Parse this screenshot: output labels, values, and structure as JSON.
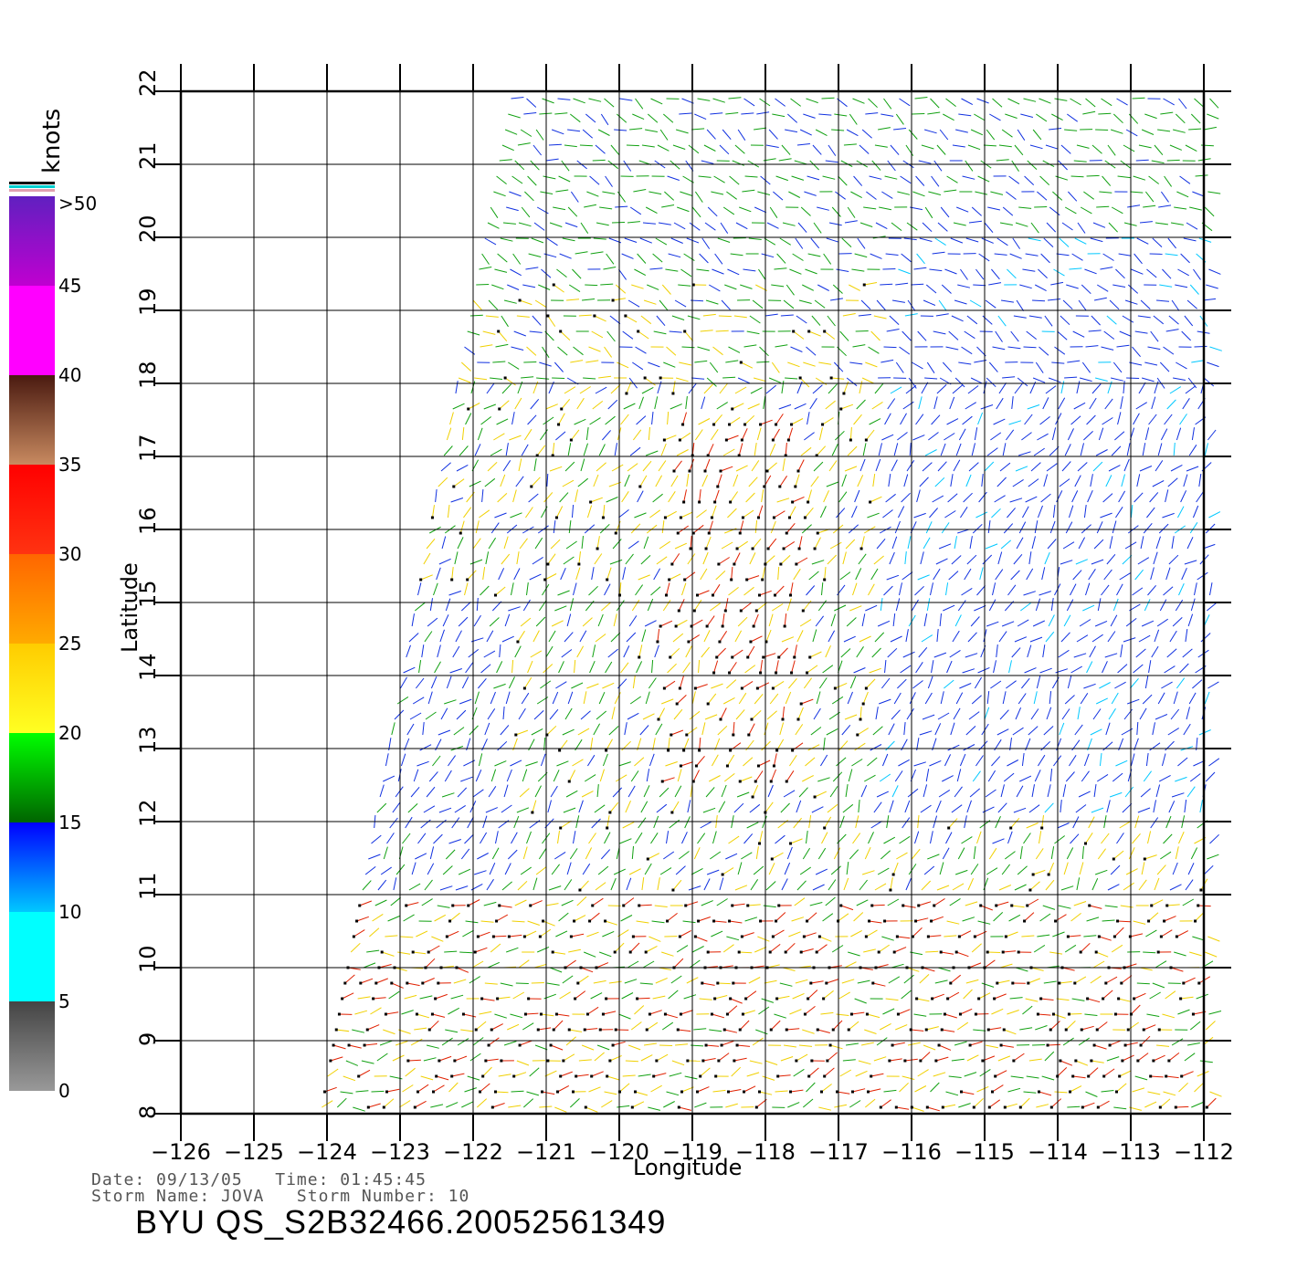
{
  "colorbar": {
    "units": "knots",
    "segments": [
      {
        "label": "0",
        "color_top": "#444444",
        "color_bottom": "#999999"
      },
      {
        "label": "5",
        "color_top": "#00ffff",
        "color_bottom": "#00ffff"
      },
      {
        "label": "10",
        "color_top": "#0000ff",
        "color_bottom": "#00c8ff"
      },
      {
        "label": "15",
        "color_top": "#00ff00",
        "color_bottom": "#006400"
      },
      {
        "label": "20",
        "color_top": "#ffcc00",
        "color_bottom": "#ffff22"
      },
      {
        "label": "25",
        "color_top": "#ff6600",
        "color_bottom": "#ffaa00"
      },
      {
        "label": "30",
        "color_top": "#ff0000",
        "color_bottom": "#ff3311"
      },
      {
        "label": "35",
        "color_top": "#4a1a10",
        "color_bottom": "#c88a60"
      },
      {
        "label": "40",
        "color_top": "#ff00ff",
        "color_bottom": "#ff00ff"
      },
      {
        "label": "45",
        "color_top": "#6020c0",
        "color_bottom": "#c000d0"
      }
    ],
    "top_label": ">50"
  },
  "axes": {
    "xlabel": "Longitude",
    "ylabel": "Latitude",
    "lon_ticks": [
      "−126",
      "−125",
      "−124",
      "−123",
      "−122",
      "−121",
      "−120",
      "−119",
      "−118",
      "−117",
      "−116",
      "−115",
      "−114",
      "−113",
      "−112"
    ],
    "lat_ticks": [
      "8",
      "9",
      "10",
      "11",
      "12",
      "13",
      "14",
      "15",
      "16",
      "17",
      "18",
      "19",
      "20",
      "21",
      "22"
    ],
    "lon_range": [
      -126,
      -112
    ],
    "lat_range": [
      8,
      22
    ]
  },
  "info": {
    "date_line": "Date: 09/13/05   Time: 01:45:45",
    "storm_line": "Storm Name: JOVA   Storm Number: 10"
  },
  "title": "BYU  QS_S2B32466.20052561349",
  "colors": {
    "calm": "#888888",
    "low": "#00c8ff",
    "moderate": "#1030e0",
    "fresh": "#10a010",
    "strong": "#f0d000",
    "gale": "#e02000"
  }
}
